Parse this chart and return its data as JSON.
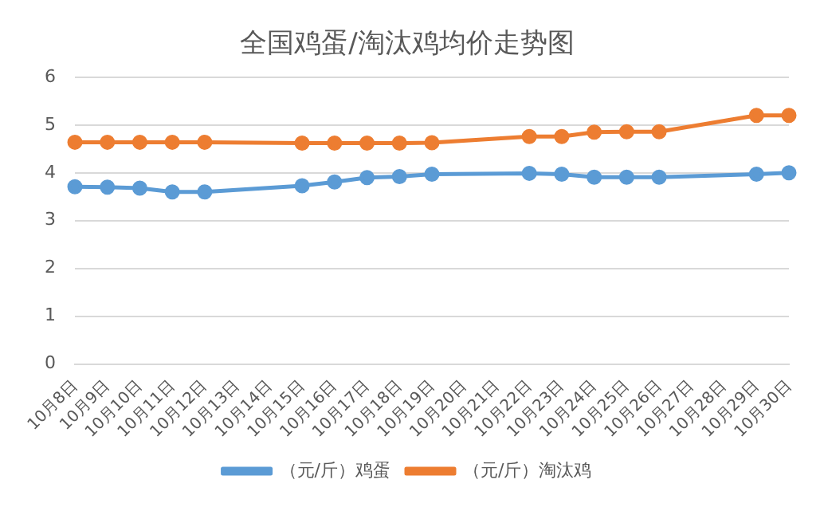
{
  "chart_data": {
    "type": "line",
    "title": "全国鸡蛋/淘汰鸡均价走势图",
    "categories": [
      "10月8日",
      "10月9日",
      "10月10日",
      "10月11日",
      "10月12日",
      "10月13日",
      "10月14日",
      "10月15日",
      "10月16日",
      "10月17日",
      "10月18日",
      "10月19日",
      "10月20日",
      "10月21日",
      "10月22日",
      "10月23日",
      "10月24日",
      "10月25日",
      "10月26日",
      "10月27日",
      "10月28日",
      "10月29日",
      "10月30日"
    ],
    "series": [
      {
        "name": "（元/斤）鸡蛋",
        "color": "#5b9bd5",
        "values": [
          3.71,
          3.7,
          3.68,
          3.6,
          3.6,
          null,
          null,
          3.73,
          3.81,
          3.9,
          3.92,
          3.97,
          null,
          null,
          3.99,
          3.97,
          3.91,
          3.91,
          3.91,
          null,
          null,
          3.97,
          4.0
        ]
      },
      {
        "name": "（元/斤）淘汰鸡",
        "color": "#ed7d31",
        "values": [
          4.64,
          4.64,
          4.64,
          4.64,
          4.64,
          null,
          null,
          4.62,
          4.62,
          4.62,
          4.62,
          4.63,
          null,
          null,
          4.76,
          4.76,
          4.85,
          4.86,
          4.86,
          null,
          null,
          5.2,
          5.2
        ]
      }
    ],
    "ylim": [
      0,
      6
    ],
    "yticks": [
      0,
      1,
      2,
      3,
      4,
      5,
      6
    ],
    "grid": "y",
    "legend": "bottom",
    "marker": "circle",
    "line_style": "solid"
  }
}
